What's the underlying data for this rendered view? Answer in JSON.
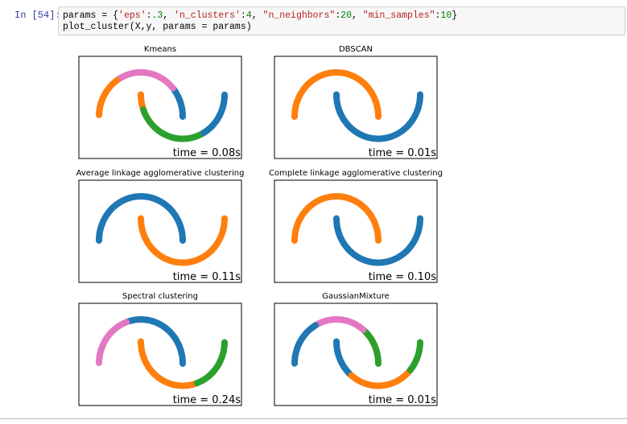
{
  "cell": {
    "prompt": "In [54]:",
    "code": [
      [
        "params",
        " = ",
        "{",
        "'eps'",
        ":",
        ".3",
        ", ",
        "'n_clusters'",
        ":",
        "4",
        ", ",
        "\"n_neighbors\"",
        ":",
        "20",
        ", ",
        "\"min_samples\"",
        ":",
        "10",
        "}"
      ],
      [
        "plot_cluster(X,y, params = params)"
      ]
    ]
  },
  "plots": [
    {
      "title": "Kmeans",
      "time": "time = 0.08s"
    },
    {
      "title": "DBSCAN",
      "time": "time = 0.01s"
    },
    {
      "title": "Average linkage agglomerative clustering",
      "time": "time = 0.11s"
    },
    {
      "title": "Complete linkage agglomerative clustering",
      "time": "time = 0.10s"
    },
    {
      "title": "Spectral clustering",
      "time": "time = 0.24s"
    },
    {
      "title": "GaussianMixture",
      "time": "time = 0.01s"
    }
  ]
}
